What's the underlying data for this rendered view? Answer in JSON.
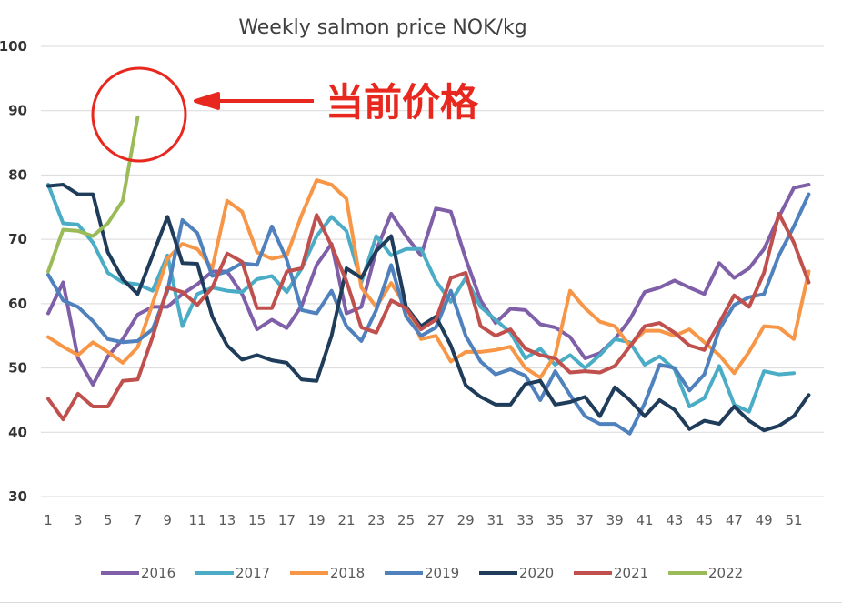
{
  "chart_data": {
    "type": "line",
    "title": "Weekly salmon price NOK/kg",
    "xlabel": "",
    "ylabel": "",
    "ylim": [
      30,
      100
    ],
    "y_ticks": [
      30,
      40,
      50,
      60,
      70,
      80,
      90,
      100
    ],
    "xlim": [
      1,
      52
    ],
    "x_ticks": [
      1,
      3,
      5,
      7,
      9,
      11,
      13,
      15,
      17,
      19,
      21,
      23,
      25,
      27,
      29,
      31,
      33,
      35,
      37,
      39,
      41,
      43,
      45,
      47,
      49,
      51
    ],
    "grid": true,
    "legend_position": "bottom",
    "series": [
      {
        "name": "2016",
        "color": "#7f5fa8",
        "start_week": 1,
        "values": [
          58.5,
          63.3,
          51.5,
          47.4,
          51.8,
          54.5,
          58.3,
          59.5,
          59.5,
          61.5,
          63,
          65,
          65,
          61.5,
          56,
          57.5,
          56.2,
          59.7,
          66,
          69.3,
          58.5,
          59.5,
          68.3,
          74,
          70.5,
          67.5,
          74.8,
          74.3,
          67,
          60.5,
          57,
          59.2,
          59,
          56.8,
          56.3,
          54.8,
          51.5,
          52.3,
          54.5,
          57.5,
          61.8,
          62.5,
          63.6,
          62.5,
          61.5,
          66.3,
          64,
          65.5,
          68.5,
          73.5,
          78,
          78.5
        ]
      },
      {
        "name": "2017",
        "color": "#4bacc6",
        "start_week": 1,
        "values": [
          78.5,
          72.5,
          72.3,
          69.5,
          64.8,
          63.3,
          63,
          62,
          67.5,
          56.5,
          61.5,
          62.5,
          62,
          61.8,
          63.8,
          64.3,
          61.8,
          65.5,
          70.5,
          73.5,
          71.3,
          63.3,
          70.5,
          67.5,
          68.5,
          68.5,
          63.5,
          60.3,
          64,
          59.5,
          57.5,
          55.5,
          51.5,
          53,
          50.5,
          52,
          50,
          52,
          54.5,
          54,
          50.5,
          51.8,
          49.8,
          44,
          45.3,
          50.3,
          44.3,
          43.2,
          49.5,
          49,
          49.2,
          null
        ]
      },
      {
        "name": "2018",
        "color": "#f79646",
        "start_week": 1,
        "values": [
          54.8,
          53.3,
          52,
          54,
          52.5,
          50.8,
          53.2,
          60,
          67,
          69.3,
          68.5,
          65.5,
          76,
          74.3,
          68,
          67,
          67.5,
          73.8,
          79.2,
          78.5,
          76.3,
          62.5,
          59.5,
          63.2,
          59.5,
          54.5,
          55,
          51,
          52.5,
          52.5,
          52.8,
          53.3,
          50,
          48.5,
          52,
          62,
          59.3,
          57.2,
          56.5,
          53.5,
          55.8,
          55.8,
          55,
          56,
          54,
          52,
          49.2,
          52.5,
          56.5,
          56.3,
          54.5,
          65
        ]
      },
      {
        "name": "2019",
        "color": "#4f81bd",
        "start_week": 1,
        "values": [
          64.5,
          60.5,
          59.5,
          57.3,
          54.5,
          54,
          54.2,
          56,
          62,
          73,
          71,
          64.3,
          65,
          66.3,
          66,
          72,
          66.8,
          59,
          58.5,
          62,
          56.5,
          54.2,
          59,
          66,
          58,
          55,
          56.3,
          62,
          55,
          51,
          49,
          49.8,
          48.8,
          45,
          49.5,
          45.8,
          42.5,
          41.3,
          41.3,
          39.8,
          44.5,
          50.5,
          50,
          46.5,
          49,
          56,
          59.8,
          61,
          61.5,
          67.5,
          72,
          77
        ]
      },
      {
        "name": "2020",
        "color": "#1f3c5a",
        "start_week": 1,
        "values": [
          78.3,
          78.5,
          77,
          77,
          68,
          63.8,
          61.5,
          67.5,
          73.5,
          66.3,
          66.2,
          58,
          53.5,
          51.3,
          52,
          51.2,
          50.8,
          48.2,
          48,
          55,
          65.5,
          64,
          68.2,
          70.5,
          59.5,
          56.5,
          58,
          53.5,
          47.3,
          45.5,
          44.3,
          44.3,
          47.5,
          48,
          44.3,
          44.7,
          45.5,
          42.5,
          47,
          45,
          42.5,
          45,
          43.5,
          40.5,
          41.8,
          41.3,
          44,
          41.8,
          40.3,
          41,
          42.5,
          45.8
        ]
      },
      {
        "name": "2021",
        "color": "#c0504d",
        "start_week": 1,
        "values": [
          45.2,
          42,
          46,
          44,
          44,
          48,
          48.2,
          54.8,
          62.5,
          61.8,
          59.8,
          62.5,
          67.8,
          66.5,
          59.3,
          59.3,
          65,
          65.5,
          73.8,
          69,
          63.5,
          56.3,
          55.5,
          60.5,
          59.3,
          56,
          57.5,
          64,
          64.8,
          56.5,
          55,
          56,
          53,
          52,
          51.5,
          49.3,
          49.5,
          49.3,
          50.3,
          53.3,
          56.5,
          57,
          55.5,
          53.5,
          52.8,
          57,
          61.3,
          59.5,
          64.8,
          74,
          69.5,
          63.3
        ]
      },
      {
        "name": "2022",
        "color": "#9bbb59",
        "start_week": 1,
        "values": [
          65,
          71.5,
          71.3,
          70.5,
          72.5,
          76,
          89
        ]
      }
    ]
  },
  "annotation": {
    "text": "当前价格",
    "color": "#e8281e"
  }
}
